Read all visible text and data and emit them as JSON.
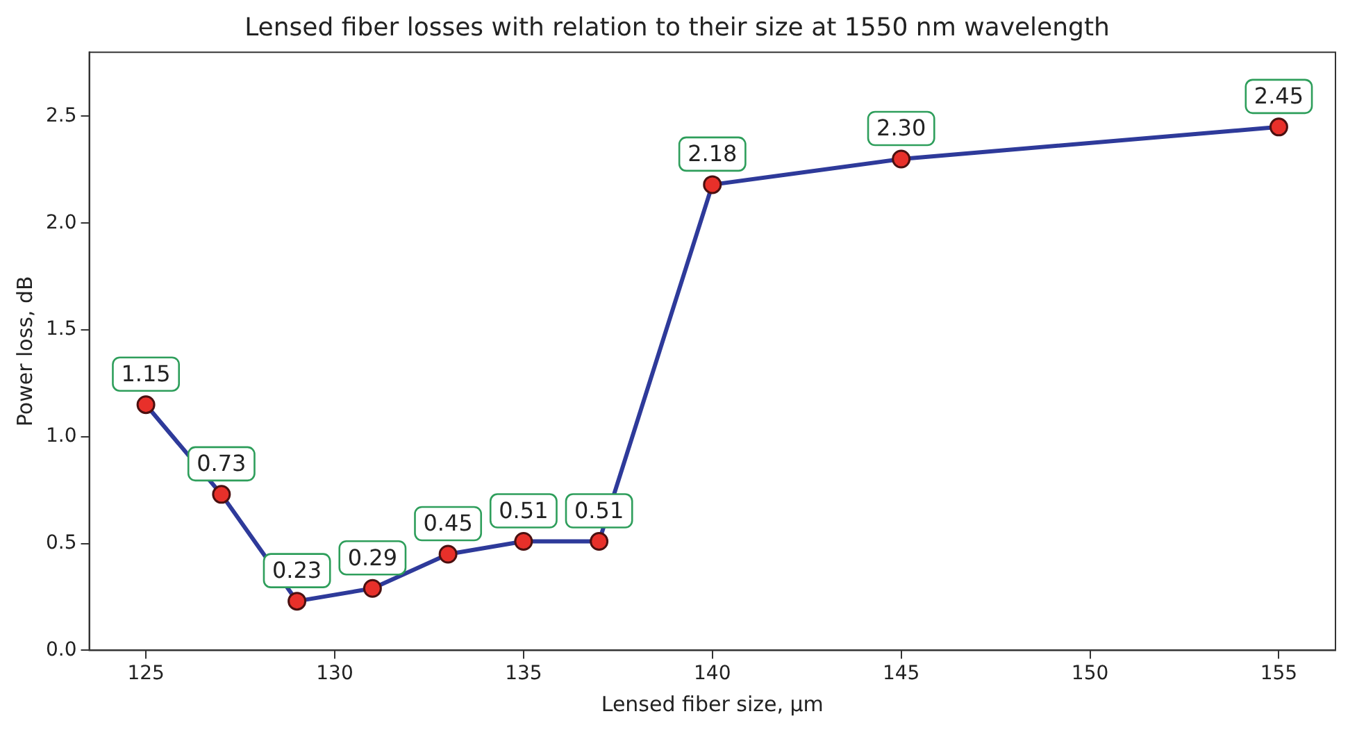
{
  "chart_data": {
    "type": "line",
    "title": "Lensed fiber losses with relation to their size at 1550 nm wavelength",
    "xlabel": "Lensed fiber size, μm",
    "ylabel": "Power loss, dB",
    "x": [
      125,
      127,
      129,
      131,
      133,
      135,
      137,
      140,
      145,
      155
    ],
    "series": [
      {
        "color": "#2e3a9a",
        "colors": [
          "#e8302a",
          "#e8302a",
          "#e8302a",
          "#e8302a",
          "#e8302a",
          "#e8302a",
          "#e8302a",
          "#e8302a",
          "#e8302a",
          "#e8302a"
        ],
        "values": [
          1.15,
          0.73,
          0.23,
          0.29,
          0.45,
          0.51,
          0.51,
          2.18,
          2.3,
          2.45
        ],
        "value_labels": [
          "1.15",
          "0.73",
          "0.23",
          "0.29",
          "0.45",
          "0.51",
          "0.51",
          "2.18",
          "2.30",
          "2.45"
        ]
      }
    ],
    "xlim": [
      123.5,
      156.5
    ],
    "xticks": [
      125,
      130,
      135,
      140,
      145,
      150,
      155
    ],
    "ylim": [
      0,
      2.8
    ],
    "yticks": [
      {
        "value": 0,
        "label": "0.0"
      },
      {
        "value": 0.5,
        "label": "0.5"
      },
      {
        "value": 1,
        "label": "1.0"
      },
      {
        "value": 1.5,
        "label": "1.5"
      },
      {
        "value": 2,
        "label": "2.0"
      },
      {
        "value": 2.5,
        "label": "2.5"
      }
    ],
    "grid": false,
    "legend": false,
    "marker": "circle",
    "line_style": "solid"
  }
}
